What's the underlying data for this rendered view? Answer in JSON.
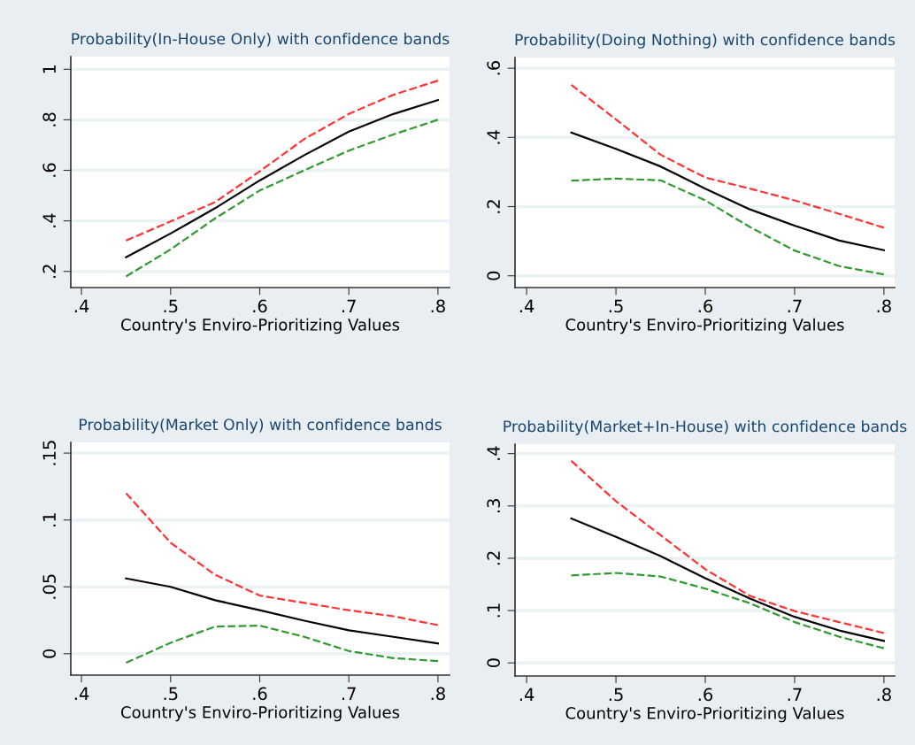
{
  "chart_data": [
    {
      "type": "line",
      "title": "Probability(In-House Only) with confidence bands",
      "xlabel": "Country's Enviro-Prioritizing Values",
      "x": [
        0.45,
        0.5,
        0.55,
        0.6,
        0.65,
        0.7,
        0.75,
        0.8
      ],
      "xlim": [
        0.388,
        0.813
      ],
      "xticks": [
        {
          "value": 0.4,
          "label": ".4"
        },
        {
          "value": 0.5,
          "label": ".5"
        },
        {
          "value": 0.6,
          "label": ".6"
        },
        {
          "value": 0.7,
          "label": ".7"
        },
        {
          "value": 0.8,
          "label": ".8"
        }
      ],
      "ylim": [
        0.136,
        1.05
      ],
      "yticks": [
        {
          "value": 0.2,
          "label": ".2"
        },
        {
          "value": 0.4,
          "label": ".4"
        },
        {
          "value": 0.6,
          "label": ".6"
        },
        {
          "value": 0.8,
          "label": ".8"
        },
        1
      ],
      "grid": "y",
      "legend": false,
      "marker": "none",
      "series": [
        {
          "color": "#ff3333",
          "line_style": "dashed",
          "values": [
            0.322,
            0.398,
            0.474,
            0.596,
            0.724,
            0.823,
            0.899,
            0.955
          ]
        },
        {
          "color": "#339933",
          "line_style": "dashed",
          "values": [
            0.18,
            0.287,
            0.41,
            0.52,
            0.6,
            0.678,
            0.742,
            0.8
          ]
        },
        {
          "color": "#000000",
          "line_style": "solid",
          "values": [
            0.256,
            0.35,
            0.45,
            0.56,
            0.66,
            0.753,
            0.823,
            0.878
          ]
        }
      ]
    },
    {
      "type": "line",
      "title": "Probability(Doing Nothing) with confidence bands",
      "xlabel": "Country's Enviro-Prioritizing Values",
      "x": [
        0.45,
        0.5,
        0.55,
        0.6,
        0.65,
        0.7,
        0.75,
        0.8
      ],
      "xlim": [
        0.387,
        0.812
      ],
      "xticks": [
        {
          "value": 0.4,
          "label": ".4"
        },
        {
          "value": 0.5,
          "label": ".5"
        },
        {
          "value": 0.6,
          "label": ".6"
        },
        {
          "value": 0.7,
          "label": ".7"
        },
        {
          "value": 0.8,
          "label": ".8"
        }
      ],
      "ylim": [
        -0.034,
        0.631
      ],
      "yticks": [
        0,
        {
          "value": 0.2,
          "label": ".2"
        },
        {
          "value": 0.4,
          "label": ".4"
        },
        {
          "value": 0.6,
          "label": ".6"
        }
      ],
      "grid": "y",
      "legend": false,
      "marker": "none",
      "series": [
        {
          "color": "#ff3333",
          "line_style": "dashed",
          "values": [
            0.552,
            0.452,
            0.35,
            0.284,
            0.252,
            0.218,
            0.179,
            0.139
          ]
        },
        {
          "color": "#339933",
          "line_style": "dashed",
          "values": [
            0.275,
            0.281,
            0.276,
            0.218,
            0.141,
            0.073,
            0.028,
            0.004
          ]
        },
        {
          "color": "#000000",
          "line_style": "solid",
          "values": [
            0.414,
            0.367,
            0.316,
            0.252,
            0.192,
            0.145,
            0.102,
            0.074
          ]
        }
      ]
    },
    {
      "type": "line",
      "title": "Probability(Market Only) with confidence bands",
      "xlabel": "Country's Enviro-Prioritizing Values",
      "x": [
        0.45,
        0.5,
        0.55,
        0.6,
        0.65,
        0.7,
        0.75,
        0.8
      ],
      "xlim": [
        0.388,
        0.813
      ],
      "xticks": [
        {
          "value": 0.4,
          "label": ".4"
        },
        {
          "value": 0.5,
          "label": ".5"
        },
        {
          "value": 0.6,
          "label": ".6"
        },
        {
          "value": 0.7,
          "label": ".7"
        },
        {
          "value": 0.8,
          "label": ".8"
        }
      ],
      "ylim": [
        -0.016,
        0.158
      ],
      "yticks": [
        0,
        {
          "value": 0.05,
          "label": ".05"
        },
        {
          "value": 0.1,
          "label": ".1"
        },
        {
          "value": 0.15,
          "label": ".15"
        }
      ],
      "grid": "y",
      "legend": false,
      "marker": "none",
      "series": [
        {
          "color": "#ff3333",
          "line_style": "dashed",
          "values": [
            0.12,
            0.083,
            0.059,
            0.0435,
            0.038,
            0.0325,
            0.028,
            0.0214
          ]
        },
        {
          "color": "#339933",
          "line_style": "dashed",
          "values": [
            -0.0068,
            0.0082,
            0.0203,
            0.021,
            0.0126,
            0.002,
            -0.0033,
            -0.0055
          ]
        },
        {
          "color": "#000000",
          "line_style": "solid",
          "values": [
            0.0563,
            0.05,
            0.04,
            0.0325,
            0.0247,
            0.0175,
            0.0126,
            0.0077
          ]
        }
      ]
    },
    {
      "type": "line",
      "title": "Probability(Market+In-House) with confidence bands",
      "xlabel": "Country's Enviro-Prioritizing Values",
      "x": [
        0.45,
        0.5,
        0.55,
        0.6,
        0.65,
        0.7,
        0.75,
        0.8
      ],
      "xlim": [
        0.387,
        0.812
      ],
      "xticks": [
        {
          "value": 0.4,
          "label": ".4"
        },
        {
          "value": 0.5,
          "label": ".5"
        },
        {
          "value": 0.6,
          "label": ".6"
        },
        {
          "value": 0.7,
          "label": ".7"
        },
        {
          "value": 0.8,
          "label": ".8"
        }
      ],
      "ylim": [
        -0.025,
        0.418
      ],
      "yticks": [
        0,
        {
          "value": 0.1,
          "label": ".1"
        },
        {
          "value": 0.2,
          "label": ".2"
        },
        {
          "value": 0.3,
          "label": ".3"
        },
        {
          "value": 0.4,
          "label": ".4"
        }
      ],
      "grid": "y",
      "legend": false,
      "marker": "none",
      "series": [
        {
          "color": "#ff3333",
          "line_style": "dashed",
          "values": [
            0.386,
            0.309,
            0.244,
            0.179,
            0.128,
            0.099,
            0.078,
            0.057
          ]
        },
        {
          "color": "#339933",
          "line_style": "dashed",
          "values": [
            0.167,
            0.172,
            0.165,
            0.142,
            0.114,
            0.078,
            0.05,
            0.028
          ]
        },
        {
          "color": "#000000",
          "line_style": "solid",
          "values": [
            0.276,
            0.241,
            0.204,
            0.162,
            0.123,
            0.088,
            0.062,
            0.042
          ]
        }
      ]
    }
  ]
}
